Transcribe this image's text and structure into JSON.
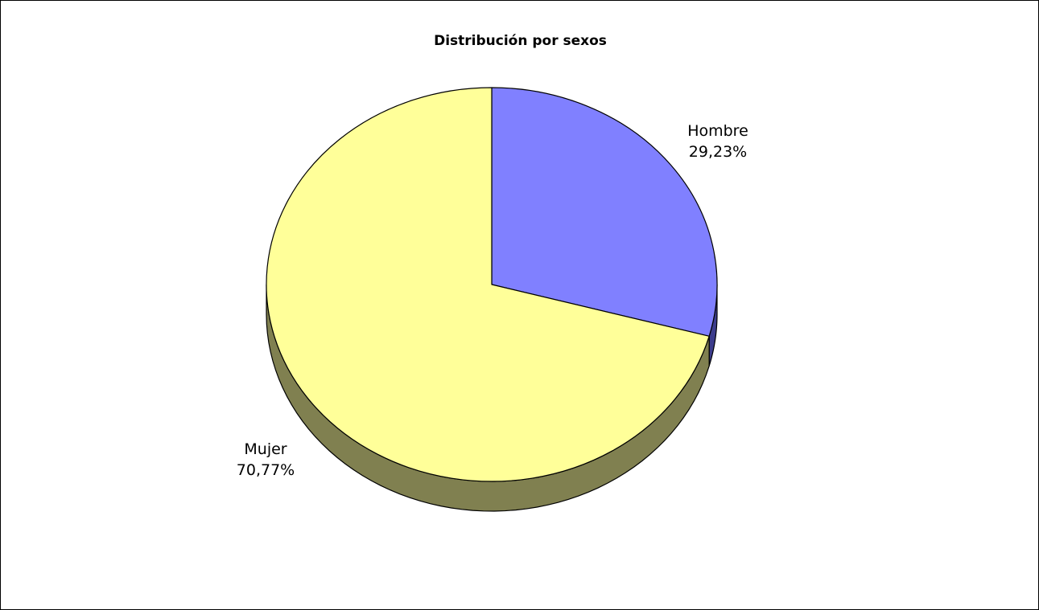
{
  "chart_data": {
    "type": "pie",
    "title": "Distribución por sexos",
    "slices": [
      {
        "label": "Hombre",
        "value": 29.23,
        "value_label": "29,23%",
        "color": "#8080ff",
        "side_color": "#3c3c8c"
      },
      {
        "label": "Mujer",
        "value": 70.77,
        "value_label": "70,77%",
        "color": "#ffff99",
        "side_color": "#808050"
      }
    ],
    "style": "3d-pie",
    "legend": "none",
    "start_angle": "12 o'clock, clockwise"
  }
}
